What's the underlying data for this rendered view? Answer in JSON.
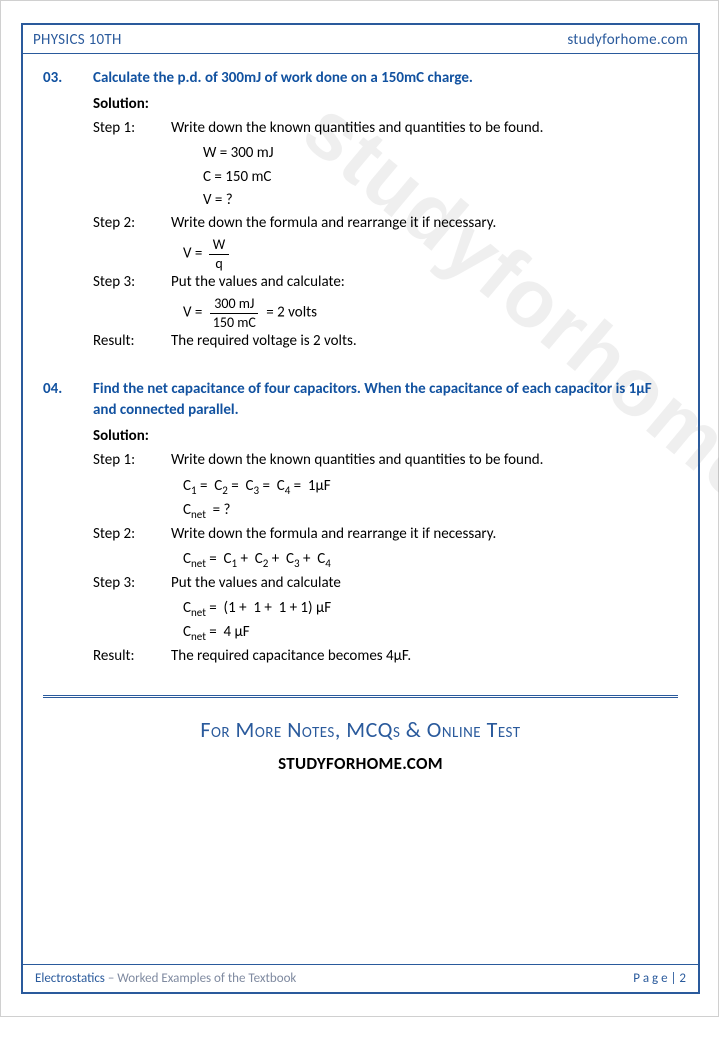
{
  "header": {
    "left": "PHYSICS 10TH",
    "right": "studyforhome.com"
  },
  "watermark": "studyforhome.com",
  "problems": [
    {
      "num": "03.",
      "question": "Calculate the p.d. of 300mJ of work done on a 150mC charge.",
      "solution_label": "Solution:",
      "step1_label": "Step 1:",
      "step1_text": "Write down the known quantities and quantities to be found.",
      "given": [
        "W = 300 mJ",
        "C = 150 mC",
        "V = ?"
      ],
      "step2_label": "Step 2:",
      "step2_text": "Write down the formula and rearrange it if necessary.",
      "f2_lhs": "V =",
      "f2_num": "W",
      "f2_den": "q",
      "step3_label": "Step 3:",
      "step3_text": "Put the values and calculate:",
      "f3_lhs": "V  =",
      "f3_num": "300 mJ",
      "f3_den": "150 mC",
      "f3_rhs": " =  2 volts",
      "result_label": "Result:",
      "result_text": "The required voltage is 2 volts."
    },
    {
      "num": "04.",
      "question": "Find the net capacitance of four capacitors. When the capacitance of each capacitor is 1µF and connected parallel.",
      "solution_label": "Solution:",
      "step1_label": "Step 1:",
      "step1_text": "Write down the known quantities and quantities to be found.",
      "given1_pre": "C",
      "given1_full": "C₁ =  C₂ =  C₃ =  C₄ =  1µF",
      "given2": "Cₙₑₜ  = ?",
      "step2_label": "Step 2:",
      "step2_text": "Write down the formula and rearrange it if necessary.",
      "f2_line": "Cₙₑₜ =  C₁ +  C₂ +  C₃ +  C₄",
      "step3_label": "Step 3:",
      "step3_text": "Put the values and calculate",
      "f3_line1": "Cₙₑₜ =  (1 +  1 +  1 + 1) µF",
      "f3_line2": "Cₙₑₜ =  4 µF",
      "result_label": "Result:",
      "result_text": "The required capacitance becomes 4µF."
    }
  ],
  "promo": {
    "line1": "For More Notes, MCQs & Online Test",
    "line2": "STUDYFORHOME.COM"
  },
  "footer": {
    "chapter": "Electrostatics",
    "subtitle": " – Worked Examples of the Textbook",
    "page_label": "P a g e  | 2"
  },
  "colors": {
    "accent": "#2a5a9c",
    "text": "#000000",
    "muted": "#7f8aa0",
    "watermark": "rgba(120,120,120,0.12)"
  }
}
